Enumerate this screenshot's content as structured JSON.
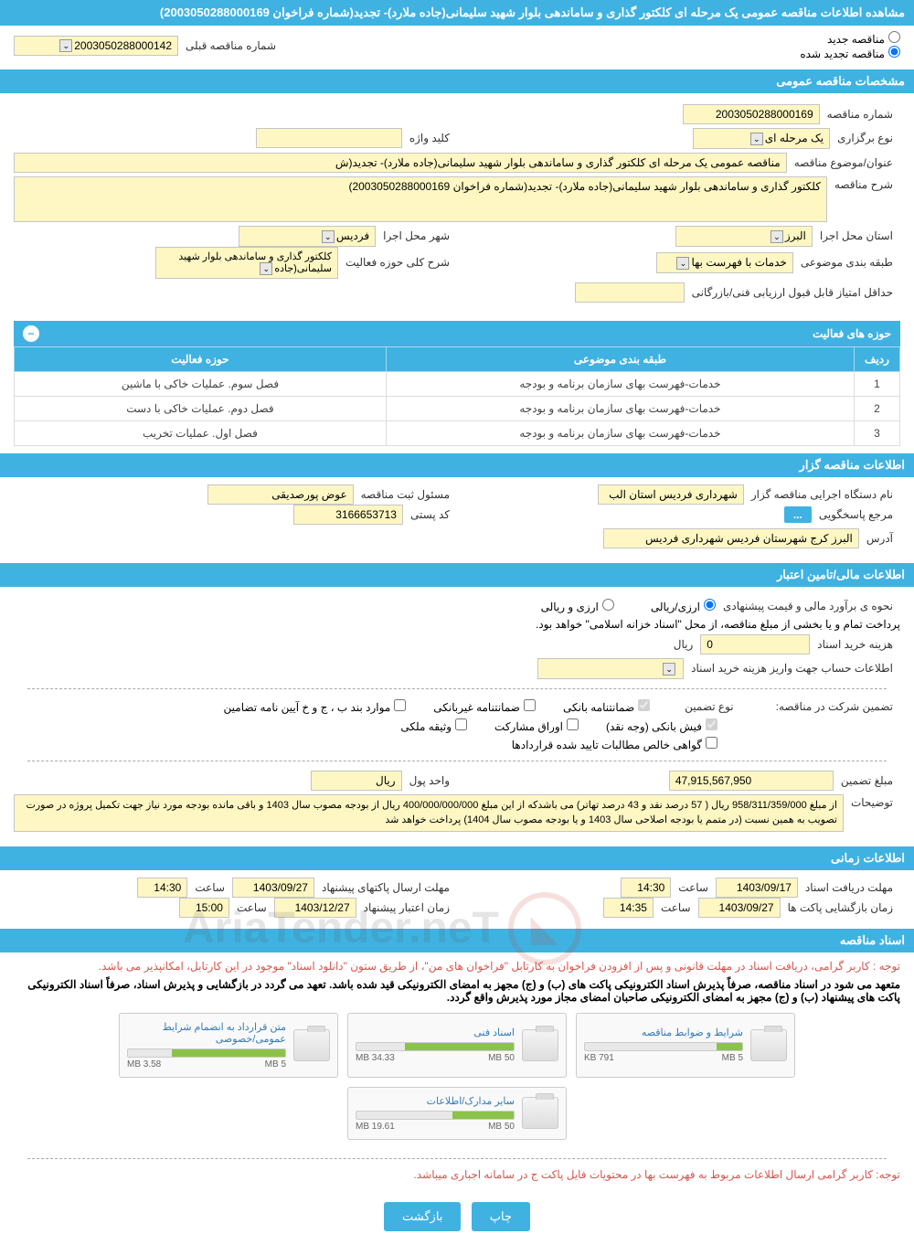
{
  "page_title": "مشاهده اطلاعات مناقصه عمومی یک مرحله ای کلکتور گذاری و ساماندهی بلوار شهید سلیمانی(جاده ملارد)- تجدید(شماره فراخوان 2003050288000169)",
  "tender_mode": {
    "new_label": "مناقصه جدید",
    "renewed_label": "مناقصه تجدید شده",
    "selected": "renewed"
  },
  "prev_number_label": "شماره مناقصه قبلی",
  "prev_number_value": "2003050288000142",
  "sections": {
    "general": "مشخصات مناقصه عمومی",
    "holder": "اطلاعات مناقصه گزار",
    "financial": "اطلاعات مالی/تامین اعتبار",
    "timing": "اطلاعات زمانی",
    "documents": "اسناد مناقصه"
  },
  "general": {
    "number_label": "شماره مناقصه",
    "number_value": "2003050288000169",
    "type_label": "نوع برگزاری",
    "type_value": "یک مرحله ای",
    "keyword_label": "کلید واژه",
    "keyword_value": "",
    "title_label": "عنوان/موضوع مناقصه",
    "title_value": "مناقصه عمومی یک مرحله ای کلکتور گذاری و ساماندهی بلوار شهید سلیمانی(جاده ملارد)- تجدید(ش",
    "description_label": "شرح مناقصه",
    "description_value": "کلکتور گذاری و ساماندهی بلوار شهید سلیمانی(جاده ملارد)- تجدید(شماره فراخوان 2003050288000169)",
    "province_label": "استان محل اجرا",
    "province_value": "البرز",
    "city_label": "شهر محل اجرا",
    "city_value": "فردیس",
    "category_label": "طبقه بندی موضوعی",
    "category_value": "خدمات با فهرست بها",
    "scope_label": "شرح کلی حوزه فعالیت",
    "scope_value": "کلکتور گذاری و ساماندهی بلوار شهید سلیمانی(جاده",
    "min_score_label": "حداقل امتیاز قابل قبول ارزیابی فنی/بازرگانی",
    "min_score_value": ""
  },
  "activity_table": {
    "header": "حوزه های فعالیت",
    "columns": [
      "ردیف",
      "طبقه بندی موضوعی",
      "حوزه فعالیت"
    ],
    "rows": [
      [
        "1",
        "خدمات-فهرست بهای سازمان برنامه و بودجه",
        "فصل سوم. عملیات خاکی با ماشین"
      ],
      [
        "2",
        "خدمات-فهرست بهای سازمان برنامه و بودجه",
        "فصل دوم. عملیات خاکی با دست"
      ],
      [
        "3",
        "خدمات-فهرست بهای سازمان برنامه و بودجه",
        "فصل اول. عملیات تخریب"
      ]
    ]
  },
  "holder": {
    "org_label": "نام دستگاه اجرایی مناقصه گزار",
    "org_value": "شهرداری فردیس استان الب",
    "registrar_label": "مسئول ثبت مناقصه",
    "registrar_value": "عوض پورصدیقی",
    "contact_label": "مرجع پاسخگویی",
    "postal_label": "کد پستی",
    "postal_value": "3166653713",
    "address_label": "آدرس",
    "address_value": "البرز کرج شهرستان فردیس شهرداری فردیس"
  },
  "financial": {
    "estimate_label": "نحوه ی برآورد مالی و قیمت پیشنهادی",
    "option_currency": "ارزی/ریالی",
    "option_both": "ارزی و ریالی",
    "payment_note": "پرداخت تمام و یا بخشی از مبلغ مناقصه، از محل \"اسناد خزانه اسلامی\" خواهد بود.",
    "purchase_cost_label": "هزینه خرید اسناد",
    "purchase_cost_value": "0",
    "purchase_cost_unit": "ریال",
    "account_info_label": "اطلاعات حساب جهت واریز هزینه خرید اسناد",
    "guarantee_section_label": "تضمین شرکت در مناقصه:",
    "guarantee_type_label": "نوع تضمین",
    "checkboxes": {
      "bank_guarantee": "ضمانتنامه بانکی",
      "nonbank_guarantee": "ضمانتنامه غیربانکی",
      "bonds": "موارد بند ب ، ج و خ آیین نامه تضامین",
      "bank_receipt": "فیش بانکی (وجه نقد)",
      "participation_bonds": "اوراق مشارکت",
      "property_deed": "وثیقه ملکی",
      "contract_claims": "گواهی خالص مطالبات تایید شده قراردادها"
    },
    "guarantee_amount_label": "مبلغ تضمین",
    "guarantee_amount_value": "47,915,567,950",
    "currency_unit_label": "واحد پول",
    "currency_unit_value": "ریال",
    "notes_label": "توضیحات",
    "notes_value": "از مبلغ 958/311/359/000 ریال ( 57 درصد نقد و 43 درصد تهاتر) می باشدکه از این مبلغ 400/000/000/000 ریال از بودجه مصوب سال 1403 و باقی مانده بودجه مورد نیاز جهت تکمیل پروژه در صورت تصویب به همین نسبت (در متمم یا بودجه اصلاحی سال 1403 و یا بودجه مصوب سال 1404) پرداخت خواهد شد"
  },
  "timing": {
    "receive_deadline_label": "مهلت دریافت اسناد",
    "receive_date": "1403/09/17",
    "receive_time_label": "ساعت",
    "receive_time": "14:30",
    "send_deadline_label": "مهلت ارسال پاکتهای پیشنهاد",
    "send_date": "1403/09/27",
    "send_time": "14:30",
    "open_label": "زمان بازگشایی پاکت ها",
    "open_date": "1403/09/27",
    "open_time": "14:35",
    "validity_label": "زمان اعتبار پیشنهاد",
    "validity_date": "1403/12/27",
    "validity_time": "15:00"
  },
  "documents": {
    "notice1": "توجه : کاربر گرامی، دریافت اسناد در مهلت قانونی و پس از افزودن فراخوان به کارتابل \"فراخوان های من\"، از طریق ستون \"دانلود اسناد\" موجود در این کارتابل، امکانپذیر می باشد.",
    "notice2": "متعهد می شود در اسناد مناقصه، صرفاً پذیرش اسناد الکترونیکی پاکت های (ب) و (ج) مجهز به امضای الکترونیکی قید شده باشد. تعهد می گردد در بازگشایی و پذیرش اسناد، صرفاً اسناد الکترونیکی پاکت های پیشنهاد (ب) و (ج) مجهز به امضای الکترونیکی صاحبان امضای مجاز مورد پذیرش واقع گردد.",
    "notice3": "توجه: کاربر گرامی ارسال اطلاعات مربوط به فهرست بها در محتویات فایل پاکت ج در سامانه اجباری میباشد.",
    "files": [
      {
        "title": "شرایط و ضوابط مناقصه",
        "used": "791 KB",
        "total": "5 MB",
        "pct": 16
      },
      {
        "title": "اسناد فنی",
        "used": "34.33 MB",
        "total": "50 MB",
        "pct": 69
      },
      {
        "title": "متن قرارداد به انضمام شرایط عمومی/خصوصی",
        "used": "3.58 MB",
        "total": "5 MB",
        "pct": 72
      },
      {
        "title": "سایر مدارک/اطلاعات",
        "used": "19.61 MB",
        "total": "50 MB",
        "pct": 39
      }
    ]
  },
  "buttons": {
    "print": "چاپ",
    "back": "بازگشت"
  },
  "watermark_brand": "AriaTender.neT",
  "colors": {
    "primary": "#3fb2e2",
    "yellow_field": "#fef7c3",
    "red": "#d9534f",
    "link": "#337ab7",
    "progress": "#8bc34a"
  }
}
